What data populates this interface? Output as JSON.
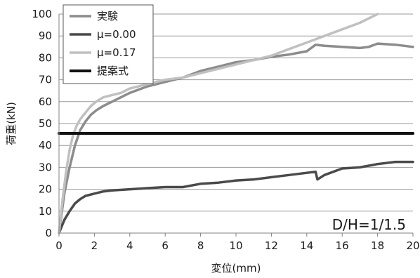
{
  "chart_data": {
    "type": "line",
    "xlabel": "変位(mm)",
    "ylabel": "荷重(kN)",
    "xlim": [
      0,
      20
    ],
    "ylim": [
      0,
      100
    ],
    "xticks": [
      0,
      2,
      4,
      6,
      8,
      10,
      12,
      14,
      16,
      18,
      20
    ],
    "yticks": [
      0,
      10,
      20,
      30,
      40,
      50,
      60,
      70,
      80,
      90,
      100
    ],
    "grid": "horizontal",
    "legend_position": "top-left",
    "annotation": "D/H=1/1.5",
    "series": [
      {
        "name": "実験",
        "color": "#8c8c8c",
        "x": [
          0,
          0.3,
          0.6,
          0.9,
          1.2,
          1.5,
          1.8,
          2.1,
          2.5,
          3.0,
          3.5,
          4.0,
          5.0,
          6.0,
          7.0,
          8.0,
          9.0,
          10.0,
          11.0,
          12.0,
          13.0,
          14.0,
          14.5,
          15.0,
          16.0,
          17.0,
          17.5,
          18.0,
          19.0,
          20.0
        ],
        "y": [
          0,
          18,
          30,
          40,
          47,
          51,
          54,
          56,
          58,
          60,
          62,
          64,
          67,
          69,
          71,
          74,
          76,
          78,
          79,
          80.5,
          81.5,
          83,
          86,
          85.5,
          85,
          84.5,
          85,
          86.5,
          86,
          85
        ]
      },
      {
        "name": "μ=0.00",
        "color": "#4a4a4a",
        "x": [
          0,
          0.3,
          0.6,
          0.9,
          1.2,
          1.5,
          2.0,
          2.5,
          3.0,
          4.0,
          5.0,
          6.0,
          7.0,
          8.0,
          9.0,
          10.0,
          11.0,
          12.0,
          13.0,
          14.0,
          14.5,
          14.6,
          15.0,
          16.0,
          17.0,
          18.0,
          19.0,
          20.0
        ],
        "y": [
          0,
          6,
          10,
          13.5,
          15.5,
          17,
          18,
          19,
          19.5,
          20,
          20.5,
          21,
          21,
          22.5,
          23,
          24,
          24.5,
          25.5,
          26.5,
          27.5,
          28,
          24.5,
          26.5,
          29.5,
          30,
          31.5,
          32.5,
          32.5
        ]
      },
      {
        "name": "μ=0.17",
        "color": "#c0c0c0",
        "x": [
          0,
          0.2,
          0.4,
          0.6,
          0.8,
          1.0,
          1.2,
          1.5,
          1.8,
          2.1,
          2.5,
          3.0,
          3.5,
          4.0,
          5.0,
          6.0,
          7.0,
          8.0,
          9.0,
          10.0,
          11.0,
          12.0,
          13.0,
          14.0,
          15.0,
          16.0,
          17.0,
          17.5,
          18.0
        ],
        "y": [
          0,
          15,
          28,
          38,
          45,
          49,
          52,
          55,
          58,
          60,
          62,
          63,
          64,
          66,
          68,
          70,
          71,
          73,
          75,
          77,
          79,
          81,
          84,
          87,
          90,
          93,
          96,
          98,
          100
        ]
      },
      {
        "name": "提案式",
        "color": "#111111",
        "x": [
          0,
          20
        ],
        "y": [
          45.5,
          45.5
        ]
      }
    ]
  }
}
